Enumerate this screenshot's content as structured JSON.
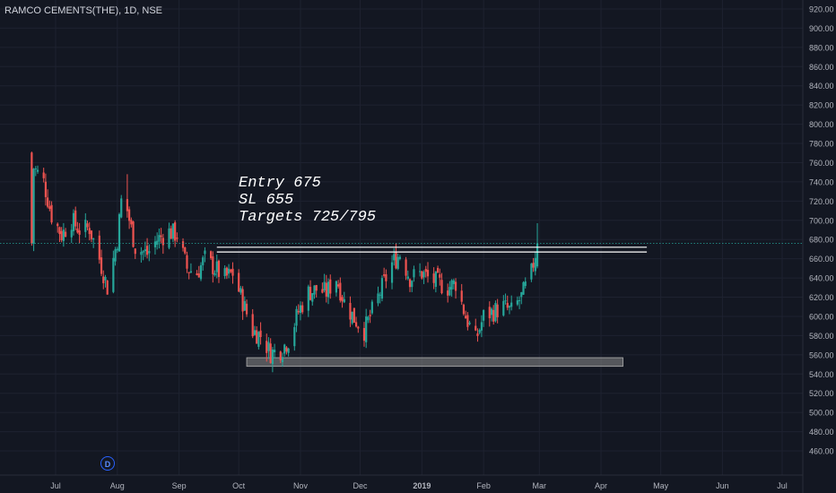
{
  "header": {
    "symbol": "RAMCO CEMENTS(THE), 1D, NSE"
  },
  "annotation": {
    "line1": "Entry 675",
    "line2": "SL 655",
    "line3": "Targets 725/795"
  },
  "badge": {
    "label": "D"
  },
  "colors": {
    "background": "#131722",
    "up": "#26a69a",
    "down": "#ef5350",
    "grid": "#1e2230",
    "price_line": "#26a69a",
    "zone": "#8c8c8c",
    "text": "#b2b5be"
  },
  "chart_data": {
    "type": "candlestick",
    "title": "RAMCO CEMENTS(THE), 1D, NSE",
    "y_ticks": [
      "460.00",
      "480.00",
      "500.00",
      "520.00",
      "540.00",
      "560.00",
      "580.00",
      "600.00",
      "620.00",
      "640.00",
      "660.00",
      "680.00",
      "700.00",
      "720.00",
      "740.00",
      "760.00",
      "780.00",
      "800.00",
      "820.00",
      "840.00",
      "860.00",
      "880.00",
      "900.00",
      "920.00"
    ],
    "ylim": [
      450,
      925
    ],
    "x_ticks": [
      "Jul",
      "Aug",
      "Sep",
      "Oct",
      "Nov",
      "Dec",
      "2019",
      "Feb",
      "Mar",
      "Apr",
      "May",
      "Jun",
      "Jul"
    ],
    "x_range": [
      "2018-06-19",
      "2019-07-19"
    ],
    "grid": true,
    "current_price": 676,
    "trend_lines": [
      {
        "from": "2018-09-20",
        "to": "2019-04-24",
        "value": 672
      },
      {
        "from": "2018-09-20",
        "to": "2019-04-24",
        "value": 667
      }
    ],
    "support_zone": {
      "from": "2018-10-05",
      "to": "2019-04-12",
      "low": 548,
      "high": 557
    },
    "series_close": [
      [
        "2018-06-20",
        755
      ],
      [
        "2018-06-25",
        740
      ],
      [
        "2018-06-29",
        705
      ],
      [
        "2018-07-04",
        685
      ],
      [
        "2018-07-09",
        700
      ],
      [
        "2018-07-13",
        690
      ],
      [
        "2018-07-18",
        692
      ],
      [
        "2018-07-23",
        660
      ],
      [
        "2018-07-27",
        630
      ],
      [
        "2018-08-01",
        680
      ],
      [
        "2018-08-03",
        720
      ],
      [
        "2018-08-06",
        710
      ],
      [
        "2018-08-10",
        672
      ],
      [
        "2018-08-16",
        665
      ],
      [
        "2018-08-21",
        680
      ],
      [
        "2018-08-27",
        688
      ],
      [
        "2018-08-31",
        685
      ],
      [
        "2018-09-05",
        650
      ],
      [
        "2018-09-10",
        645
      ],
      [
        "2018-09-14",
        660
      ],
      [
        "2018-09-19",
        650
      ],
      [
        "2018-09-24",
        640
      ],
      [
        "2018-09-28",
        645
      ],
      [
        "2018-10-03",
        615
      ],
      [
        "2018-10-08",
        585
      ],
      [
        "2018-10-12",
        580
      ],
      [
        "2018-10-17",
        562
      ],
      [
        "2018-10-22",
        565
      ],
      [
        "2018-10-26",
        575
      ],
      [
        "2018-10-31",
        605
      ],
      [
        "2018-11-05",
        625
      ],
      [
        "2018-11-09",
        628
      ],
      [
        "2018-11-14",
        625
      ],
      [
        "2018-11-19",
        640
      ],
      [
        "2018-11-23",
        615
      ],
      [
        "2018-11-28",
        598
      ],
      [
        "2018-12-03",
        585
      ],
      [
        "2018-12-07",
        605
      ],
      [
        "2018-12-12",
        630
      ],
      [
        "2018-12-17",
        655
      ],
      [
        "2018-12-21",
        665
      ],
      [
        "2018-12-26",
        640
      ],
      [
        "2019-01-01",
        645
      ],
      [
        "2019-01-04",
        640
      ],
      [
        "2019-01-09",
        635
      ],
      [
        "2019-01-14",
        630
      ],
      [
        "2019-01-18",
        635
      ],
      [
        "2019-01-23",
        600
      ],
      [
        "2019-01-28",
        575
      ],
      [
        "2019-02-01",
        600
      ],
      [
        "2019-02-06",
        605
      ],
      [
        "2019-02-11",
        610
      ],
      [
        "2019-02-15",
        605
      ],
      [
        "2019-02-20",
        620
      ],
      [
        "2019-02-25",
        645
      ],
      [
        "2019-02-28",
        676
      ]
    ]
  }
}
